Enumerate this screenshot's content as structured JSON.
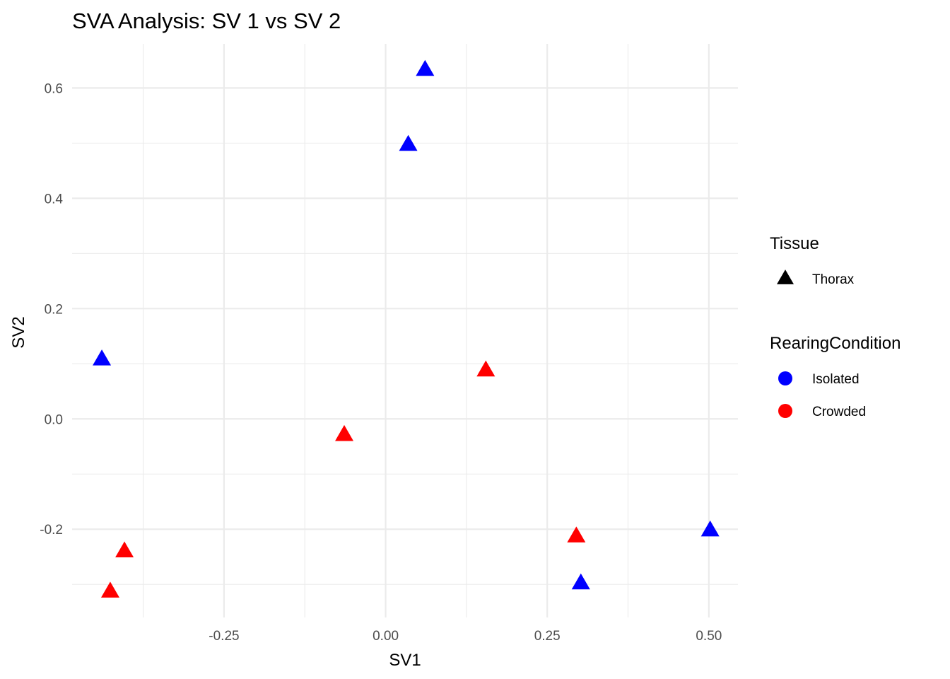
{
  "chart_data": {
    "type": "scatter",
    "title": "SVA Analysis: SV 1  vs SV 2",
    "xlabel": "SV1",
    "ylabel": "SV2",
    "xlim": [
      -0.485,
      0.545
    ],
    "ylim": [
      -0.36,
      0.68
    ],
    "x_ticks": [
      -0.25,
      0.0,
      0.25,
      0.5
    ],
    "x_tick_labels": [
      "-0.25",
      "0.00",
      "0.25",
      "0.50"
    ],
    "y_ticks": [
      -0.2,
      0.0,
      0.2,
      0.4,
      0.6
    ],
    "y_tick_labels": [
      "-0.2",
      "0.0",
      "0.2",
      "0.4",
      "0.6"
    ],
    "grid": true,
    "legend_position": "right",
    "legends": [
      {
        "title": "Tissue",
        "entries": [
          {
            "label": "Thorax",
            "shape": "triangle",
            "color": "#000000"
          }
        ]
      },
      {
        "title": "RearingCondition",
        "entries": [
          {
            "label": "Isolated",
            "shape": "circle",
            "color": "#0000ff"
          },
          {
            "label": "Crowded",
            "shape": "circle",
            "color": "#ff0000"
          }
        ]
      }
    ],
    "series": [
      {
        "name": "Isolated",
        "color": "#0000ff",
        "shape": "triangle",
        "points": [
          {
            "x": 0.061,
            "y": 0.633
          },
          {
            "x": 0.035,
            "y": 0.497
          },
          {
            "x": -0.439,
            "y": 0.108
          },
          {
            "x": 0.502,
            "y": -0.202
          },
          {
            "x": 0.302,
            "y": -0.298
          }
        ]
      },
      {
        "name": "Crowded",
        "color": "#ff0000",
        "shape": "triangle",
        "points": [
          {
            "x": 0.155,
            "y": 0.088
          },
          {
            "x": -0.064,
            "y": -0.029
          },
          {
            "x": 0.295,
            "y": -0.213
          },
          {
            "x": -0.404,
            "y": -0.24
          },
          {
            "x": -0.426,
            "y": -0.313
          }
        ]
      }
    ]
  }
}
